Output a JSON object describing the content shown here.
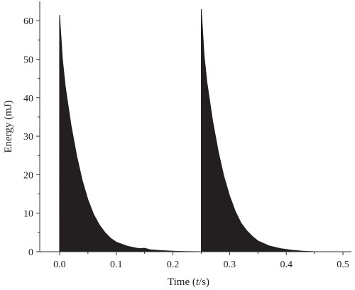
{
  "chart_data": {
    "type": "area",
    "xlabel_prefix": "Time (",
    "xlabel_var": "t",
    "xlabel_suffix": "/s)",
    "ylabel": "Energy (mJ)",
    "xlim": [
      -0.035,
      0.515
    ],
    "ylim": [
      0,
      65
    ],
    "x_ticks": [
      0.0,
      0.1,
      0.2,
      0.3,
      0.4,
      0.5
    ],
    "x_tick_labels": [
      "0.0",
      "0.1",
      "0.2",
      "0.3",
      "0.4",
      "0.5"
    ],
    "y_ticks": [
      0,
      10,
      20,
      30,
      40,
      50,
      60
    ],
    "y_tick_labels": [
      "0",
      "10",
      "20",
      "30",
      "40",
      "50",
      "60"
    ],
    "grid": false,
    "colors": {
      "fill": "#231f20",
      "axis": "#333333"
    },
    "series": [
      {
        "x": [
          0.0,
          0.005,
          0.01,
          0.02,
          0.03,
          0.04,
          0.05,
          0.06,
          0.07,
          0.08,
          0.09,
          0.1,
          0.12,
          0.14,
          0.15,
          0.16,
          0.18,
          0.2,
          0.21,
          0.22,
          0.235,
          0.25
        ],
        "y": [
          61.5,
          50.0,
          43.0,
          33.0,
          25.0,
          18.5,
          13.5,
          9.7,
          7.0,
          5.0,
          3.5,
          2.5,
          1.4,
          0.8,
          0.9,
          0.5,
          0.3,
          0.15,
          0.1,
          0.05,
          0.02,
          0.0
        ]
      },
      {
        "x": [
          0.25,
          0.255,
          0.26,
          0.27,
          0.28,
          0.29,
          0.3,
          0.31,
          0.32,
          0.33,
          0.34,
          0.35,
          0.37,
          0.39,
          0.41,
          0.43,
          0.45
        ],
        "y": [
          63.0,
          51.0,
          44.0,
          34.0,
          26.0,
          19.5,
          14.5,
          10.5,
          7.5,
          5.5,
          4.0,
          2.8,
          1.5,
          0.8,
          0.4,
          0.15,
          0.0
        ]
      }
    ]
  }
}
